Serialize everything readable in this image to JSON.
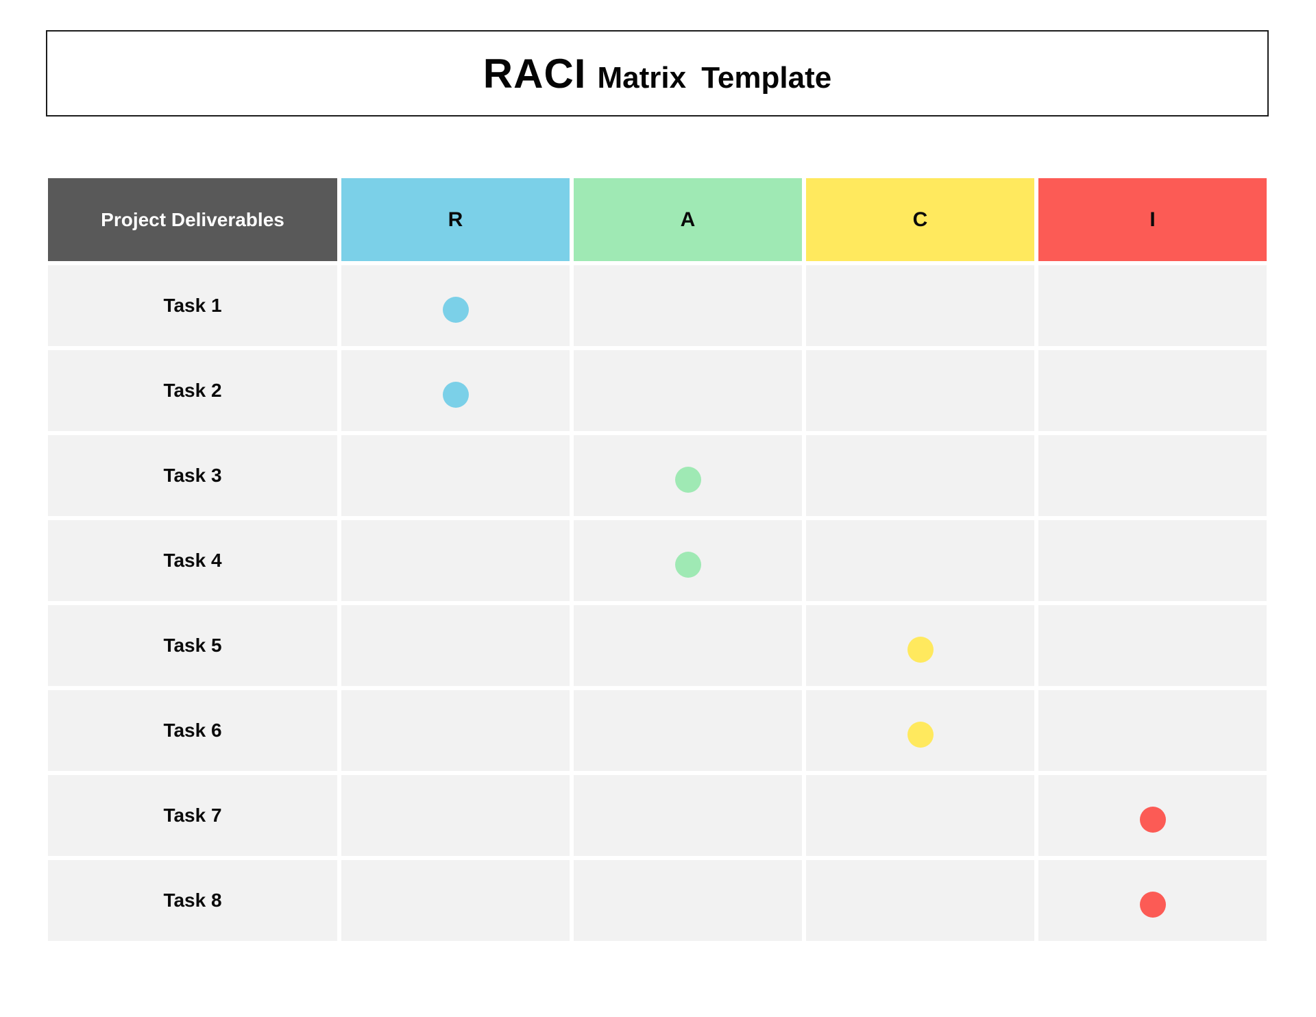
{
  "title": {
    "acronym": "RACI",
    "suffix": "Matrix Template"
  },
  "colors": {
    "header_dark": "#595959",
    "cell_background": "#F2F2F2",
    "responsible_blue": "#7BD0E8",
    "accountable_green": "#9FE9B4",
    "consulted_yellow": "#FFE95E",
    "informed_red": "#FC5B55"
  },
  "matrix": {
    "corner_header": "Project Deliverables",
    "columns": [
      {
        "id": "r",
        "label": "R",
        "color": "#7BD0E8"
      },
      {
        "id": "a",
        "label": "A",
        "color": "#9FE9B4"
      },
      {
        "id": "c",
        "label": "C",
        "color": "#FFE95E"
      },
      {
        "id": "i",
        "label": "I",
        "color": "#FC5B55"
      }
    ],
    "rows": [
      {
        "label": "Task 1",
        "marks": [
          "r"
        ]
      },
      {
        "label": "Task 2",
        "marks": [
          "r"
        ]
      },
      {
        "label": "Task 3",
        "marks": [
          "a"
        ]
      },
      {
        "label": "Task 4",
        "marks": [
          "a"
        ]
      },
      {
        "label": "Task 5",
        "marks": [
          "c"
        ]
      },
      {
        "label": "Task 6",
        "marks": [
          "c"
        ]
      },
      {
        "label": "Task 7",
        "marks": [
          "i"
        ]
      },
      {
        "label": "Task 8",
        "marks": [
          "i"
        ]
      }
    ]
  }
}
